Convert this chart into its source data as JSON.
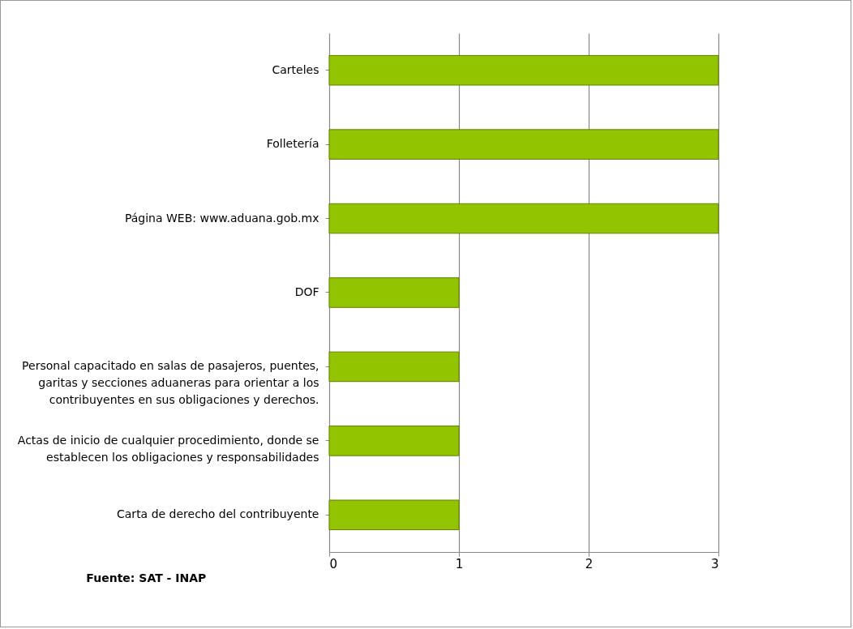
{
  "chart_data": {
    "type": "bar",
    "orientation": "horizontal",
    "categories": [
      "Carteles",
      "Folletería",
      "Página WEB: www.aduana.gob.mx",
      "DOF",
      "Personal capacitado en salas de pasajeros, puentes, garitas y secciones aduaneras para orientar a los contribuyentes en sus obligaciones y derechos.",
      "Actas de inicio de cualquier procedimiento, donde se establecen los obligaciones y responsabilidades",
      "Carta de derecho del contribuyente"
    ],
    "values": [
      3,
      3,
      3,
      1,
      1,
      1,
      1
    ],
    "color": "#92c500",
    "xlim": [
      0,
      3
    ],
    "xticks": [
      0,
      1,
      2,
      3
    ],
    "grid": "x",
    "annotations": [
      "Fuente: SAT - INAP"
    ]
  }
}
